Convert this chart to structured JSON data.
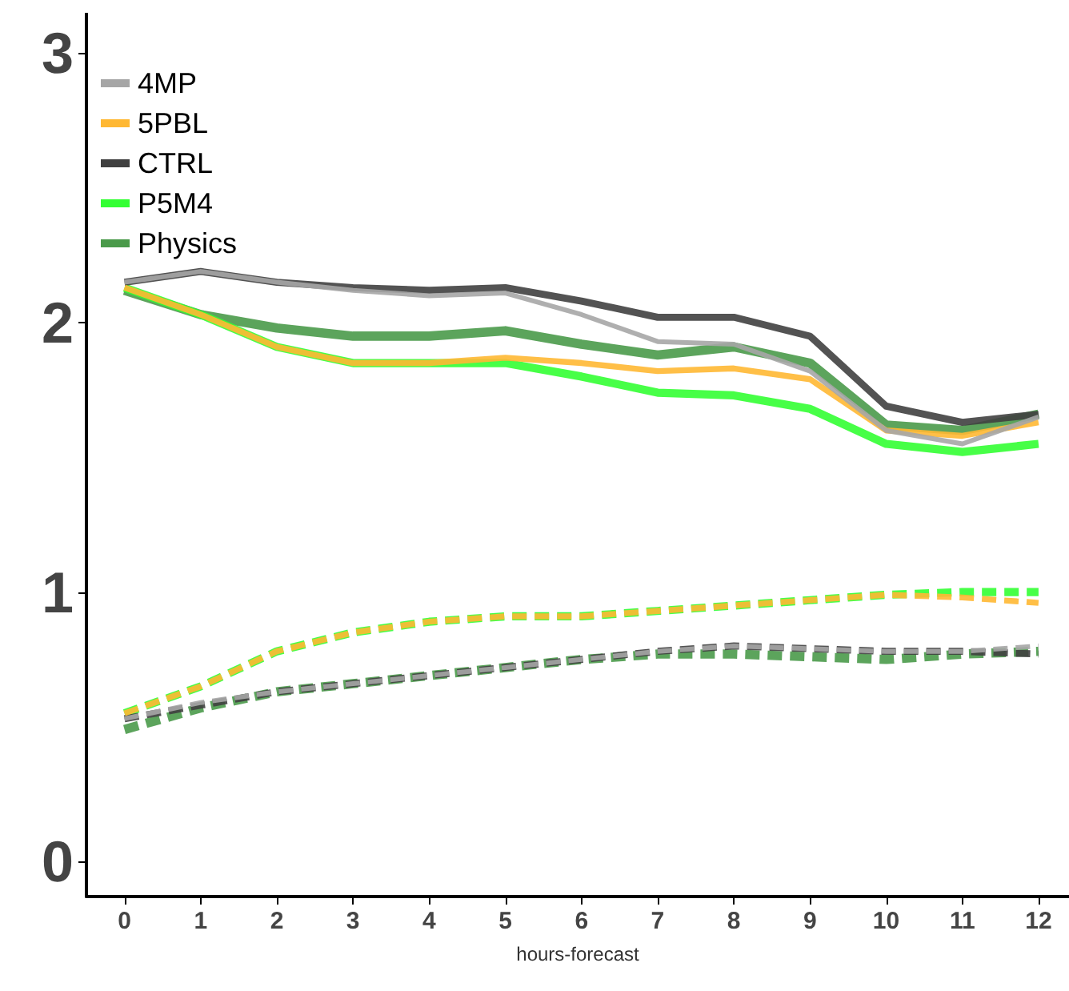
{
  "chart_data": {
    "type": "line",
    "xlabel": "hours-forecast",
    "x": [
      0,
      1,
      2,
      3,
      4,
      5,
      6,
      7,
      8,
      9,
      10,
      11,
      12
    ],
    "xlim": [
      -0.5,
      12.4
    ],
    "xticks": [
      0,
      1,
      2,
      3,
      4,
      5,
      6,
      7,
      8,
      9,
      10,
      11,
      12
    ],
    "ylim": [
      -0.13,
      3.15
    ],
    "yticks": [
      0,
      1,
      2,
      3
    ],
    "grid": false,
    "legend": "top left",
    "marker": "none",
    "line_style": "solid",
    "series": [
      {
        "name": "4MP",
        "color": "#a6a6a6",
        "values": [
          2.15,
          2.19,
          2.15,
          2.12,
          2.1,
          2.11,
          2.03,
          1.93,
          1.92,
          1.82,
          1.6,
          1.55,
          1.65
        ]
      },
      {
        "name": "5PBL",
        "color": "#ffb833",
        "values": [
          2.13,
          2.03,
          1.91,
          1.85,
          1.85,
          1.87,
          1.85,
          1.82,
          1.83,
          1.79,
          1.6,
          1.58,
          1.63
        ]
      },
      {
        "name": "CTRL",
        "color": "#404040",
        "values": [
          2.15,
          2.19,
          2.15,
          2.13,
          2.12,
          2.13,
          2.08,
          2.02,
          2.02,
          1.95,
          1.69,
          1.63,
          1.66
        ]
      },
      {
        "name": "P5M4",
        "color": "#33ff33",
        "values": [
          2.13,
          2.03,
          1.91,
          1.85,
          1.85,
          1.85,
          1.8,
          1.74,
          1.73,
          1.68,
          1.55,
          1.52,
          1.55
        ]
      },
      {
        "name": "Physics",
        "color": "#4a9a4a",
        "values": [
          2.12,
          2.03,
          1.98,
          1.95,
          1.95,
          1.97,
          1.92,
          1.88,
          1.91,
          1.85,
          1.62,
          1.6,
          1.66
        ]
      },
      {
        "color": "#a6a6a6",
        "line_style": "dashed",
        "values": [
          0.53,
          0.59,
          0.63,
          0.66,
          0.69,
          0.72,
          0.75,
          0.78,
          0.8,
          0.79,
          0.78,
          0.78,
          0.8
        ]
      },
      {
        "color": "#ffb833",
        "line_style": "dashed",
        "values": [
          0.55,
          0.65,
          0.78,
          0.85,
          0.89,
          0.91,
          0.91,
          0.93,
          0.95,
          0.97,
          0.99,
          0.98,
          0.96
        ]
      },
      {
        "color": "#404040",
        "line_style": "dashed",
        "values": [
          0.53,
          0.58,
          0.63,
          0.66,
          0.69,
          0.72,
          0.75,
          0.78,
          0.8,
          0.79,
          0.78,
          0.78,
          0.77
        ]
      },
      {
        "color": "#33ff33",
        "line_style": "dashed",
        "values": [
          0.55,
          0.65,
          0.78,
          0.85,
          0.89,
          0.91,
          0.91,
          0.93,
          0.95,
          0.97,
          0.99,
          1.0,
          1.0
        ]
      },
      {
        "color": "#4a9a4a",
        "line_style": "dashed",
        "values": [
          0.49,
          0.57,
          0.63,
          0.66,
          0.69,
          0.72,
          0.75,
          0.77,
          0.77,
          0.76,
          0.75,
          0.77,
          0.78
        ]
      }
    ]
  }
}
